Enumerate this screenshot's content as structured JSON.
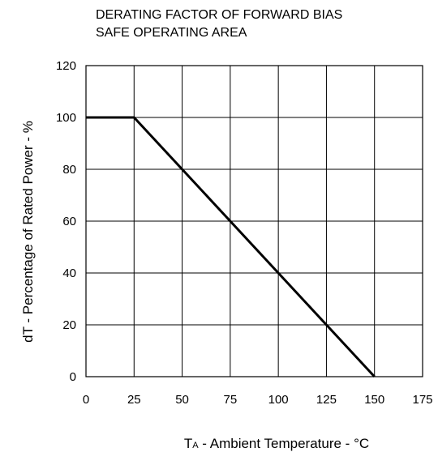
{
  "chart_data": {
    "type": "line",
    "title_lines": [
      "DERATING FACTOR OF FORWARD BIAS",
      "SAFE OPERATING AREA"
    ],
    "xlabel": {
      "main": "T",
      "subscript": "A",
      "rest": " - Ambient Temperature - °C"
    },
    "ylabel": "dT - Percentage of Rated Power - %",
    "xlim": [
      0,
      175
    ],
    "ylim": [
      0,
      120
    ],
    "x_ticks": [
      0,
      25,
      50,
      75,
      100,
      125,
      150,
      175
    ],
    "y_ticks": [
      0,
      20,
      40,
      60,
      80,
      100,
      120
    ],
    "grid": true,
    "series": [
      {
        "x": [
          0,
          25,
          150
        ],
        "y": [
          100,
          100,
          0
        ],
        "color": "#000000"
      }
    ]
  }
}
